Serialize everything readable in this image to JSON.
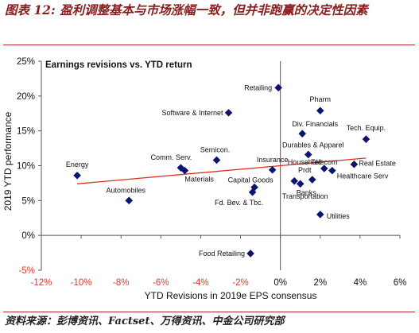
{
  "figure": {
    "title": "图表 12: 盈利调整基本与市场涨幅一致，但并非跑赢的决定性因素",
    "source": "资料来源：彭博资讯、Factset、万得资讯、中金公司研究部"
  },
  "colors": {
    "point": "#0d1470",
    "trendline": "#e03020",
    "title": "#8a1e1e",
    "rule": "#b32a2a",
    "negative_tick": "#d63a2a"
  },
  "chart_data": {
    "type": "scatter",
    "title": "Earnings revisions vs. YTD return",
    "xlabel": "YTD Revisions in 2019e EPS consensus",
    "ylabel": "2019 YTD performance",
    "xlim": [
      -12,
      6
    ],
    "ylim": [
      -5,
      25
    ],
    "xticks": [
      {
        "v": -12,
        "label": "-12%"
      },
      {
        "v": -10,
        "label": "-10%"
      },
      {
        "v": -8,
        "label": "-8%"
      },
      {
        "v": -6,
        "label": "-6%"
      },
      {
        "v": -4,
        "label": "-4%"
      },
      {
        "v": -2,
        "label": "-2%"
      },
      {
        "v": 0,
        "label": "0%"
      },
      {
        "v": 2,
        "label": "2%"
      },
      {
        "v": 4,
        "label": "4%"
      },
      {
        "v": 6,
        "label": "6%"
      }
    ],
    "yticks": [
      {
        "v": -5,
        "label": "-5%"
      },
      {
        "v": 0,
        "label": "0%"
      },
      {
        "v": 5,
        "label": "5%"
      },
      {
        "v": 10,
        "label": "10%"
      },
      {
        "v": 15,
        "label": "15%"
      },
      {
        "v": 20,
        "label": "20%"
      },
      {
        "v": 25,
        "label": "25%"
      }
    ],
    "grid": false,
    "legend": "none",
    "trendline": {
      "x": [
        -10.2,
        4.3
      ],
      "y": [
        7.4,
        11.1
      ]
    },
    "points": [
      {
        "label": "Energy",
        "x": -10.2,
        "y": 8.6
      },
      {
        "label": "Automobiles",
        "x": -7.6,
        "y": 5.0
      },
      {
        "label": "Comm. Serv.",
        "x": -5.0,
        "y": 9.7
      },
      {
        "label": "Materials",
        "x": -4.8,
        "y": 9.3
      },
      {
        "label": "Semicon.",
        "x": -3.2,
        "y": 10.8
      },
      {
        "label": "Software & Internet",
        "x": -2.6,
        "y": 17.6
      },
      {
        "label": "Capital Goods",
        "x": -1.3,
        "y": 6.9
      },
      {
        "label": "Fd. Bev. & Tbc.",
        "x": -1.4,
        "y": 6.2
      },
      {
        "label": "Food Retailing",
        "x": -1.5,
        "y": -2.6
      },
      {
        "label": "Retailing",
        "x": -0.1,
        "y": 21.2
      },
      {
        "label": "Insurance",
        "x": -0.4,
        "y": 9.4
      },
      {
        "label": "Household Prdt",
        "x": 0.7,
        "y": 7.8
      },
      {
        "label": "Banks",
        "x": 1.0,
        "y": 7.4
      },
      {
        "label": "Transportation",
        "x": 1.6,
        "y": 8.0
      },
      {
        "label": "Div. Financials",
        "x": 1.1,
        "y": 14.6
      },
      {
        "label": "Durables & Apparel",
        "x": 1.4,
        "y": 11.6
      },
      {
        "label": "Pharm",
        "x": 2.0,
        "y": 17.9
      },
      {
        "label": "Telecom",
        "x": 2.2,
        "y": 9.6
      },
      {
        "label": "Healthcare Serv",
        "x": 2.6,
        "y": 9.3
      },
      {
        "label": "Utilities",
        "x": 2.0,
        "y": 3.0
      },
      {
        "label": "Real Estate",
        "x": 3.7,
        "y": 10.2
      },
      {
        "label": "Tech. Equip.",
        "x": 4.3,
        "y": 13.8
      }
    ]
  }
}
